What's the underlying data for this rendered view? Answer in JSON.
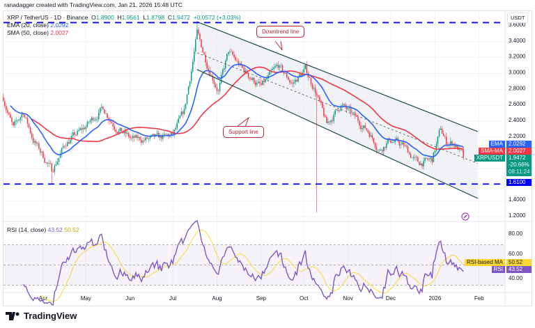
{
  "credit": "ranadagger created with TradingView.com, Jan 21, 2026 15:48 UTC",
  "legend": {
    "symbol": "XRP / TetherUS · 1D · Binance",
    "o_label": "O",
    "o": "1.8900",
    "h_label": "H",
    "h": "1.9561",
    "l_label": "L",
    "l": "1.8798",
    "c_label": "C",
    "c": "1.9472",
    "change": "+0.0572 (+3.03%)",
    "ema_label": "EMA (20, close)",
    "ema": "2.0292",
    "sma_label": "SMA (50, close)",
    "sma": "2.0027",
    "rsi_label": "RSI (14, close)",
    "rsi": "43.52",
    "rsi_ma": "50.52"
  },
  "axis": {
    "currency": "USDT",
    "price_ticks": [
      "3.6000",
      "3.4000",
      "3.2000",
      "3.0000",
      "2.8000",
      "2.6000",
      "2.4000",
      "2.2000",
      "1.4000",
      "1.2000"
    ],
    "rsi_ticks": [
      "80.00",
      "60.00",
      "40.00"
    ],
    "time_ticks": [
      "Apr",
      "May",
      "Jun",
      "Jul",
      "Aug",
      "Sep",
      "Oct",
      "Nov",
      "Dec",
      "2026",
      "Feb"
    ]
  },
  "tags": {
    "ema_name": "EMA",
    "ema_value": "2.0292",
    "sma_name": "SMA-MA",
    "sma_value": "2.0027",
    "sym_name": "XRPUSDT",
    "sym_value": "1.9472",
    "sym_change": "-20.66%",
    "countdown": "08:11:24",
    "hline_value": "1.6100",
    "rsi_ma_name": "RSI-based MA",
    "rsi_ma_value": "50.52",
    "rsi_name": "RSI",
    "rsi_value": "43.52"
  },
  "annotations": {
    "downtrend": "Downtrend line",
    "support": "Support line"
  },
  "logo": "TradingView",
  "colors": {
    "up": "#089981",
    "down": "#f23645",
    "ema": "#2962ff",
    "sma": "#f23645",
    "rsi": "#7e57c2",
    "rsi_ma": "#fdd835",
    "hline": "#0000ff",
    "channel": "#1e4d4d"
  },
  "chart_data": {
    "type": "candlestick",
    "symbol": "XRPUSDT",
    "interval": "1D",
    "ylim": [
      1.2,
      3.7
    ],
    "price_path": [
      [
        "2025-03-04",
        2.7
      ],
      [
        "2025-03-11",
        2.3
      ],
      [
        "2025-03-18",
        2.52
      ],
      [
        "2025-03-25",
        2.17
      ],
      [
        "2025-04-07",
        1.78
      ],
      [
        "2025-04-17",
        2.13
      ],
      [
        "2025-04-29",
        2.3
      ],
      [
        "2025-05-13",
        2.57
      ],
      [
        "2025-05-21",
        2.35
      ],
      [
        "2025-06-02",
        2.17
      ],
      [
        "2025-06-17",
        2.17
      ],
      [
        "2025-07-01",
        2.22
      ],
      [
        "2025-07-09",
        2.52
      ],
      [
        "2025-07-14",
        3.05
      ],
      [
        "2025-07-18",
        3.5
      ],
      [
        "2025-07-25",
        3.13
      ],
      [
        "2025-08-02",
        2.79
      ],
      [
        "2025-08-09",
        3.27
      ],
      [
        "2025-08-19",
        3.05
      ],
      [
        "2025-09-01",
        2.83
      ],
      [
        "2025-09-13",
        3.09
      ],
      [
        "2025-09-23",
        2.87
      ],
      [
        "2025-10-02",
        3.05
      ],
      [
        "2025-10-09",
        2.79
      ],
      [
        "2025-10-17",
        2.35
      ],
      [
        "2025-10-27",
        2.61
      ],
      [
        "2025-11-06",
        2.44
      ],
      [
        "2025-11-16",
        2.26
      ],
      [
        "2025-11-23",
        2.04
      ],
      [
        "2025-11-30",
        2.17
      ],
      [
        "2025-12-10",
        2.09
      ],
      [
        "2025-12-20",
        1.87
      ],
      [
        "2025-12-30",
        1.91
      ],
      [
        "2026-01-05",
        2.3
      ],
      [
        "2026-01-09",
        2.13
      ],
      [
        "2026-01-14",
        2.13
      ],
      [
        "2026-01-18",
        2.04
      ],
      [
        "2026-01-21",
        1.9472
      ]
    ],
    "wicks": [
      [
        "2025-04-07",
        "low",
        1.61
      ],
      [
        "2025-07-18",
        "high",
        3.66
      ],
      [
        "2025-10-10",
        "low",
        1.25
      ]
    ],
    "channel": {
      "upper": [
        [
          "2025-07-18",
          3.65
        ],
        [
          "2026-01-31",
          2.27
        ]
      ],
      "middle": [
        [
          "2025-07-18",
          3.26
        ],
        [
          "2026-01-31",
          1.87
        ]
      ],
      "lower": [
        [
          "2025-07-18",
          3.05
        ],
        [
          "2026-01-31",
          1.43
        ]
      ]
    },
    "horizontal_lines": [
      3.64,
      1.61
    ],
    "rsi_bands": [
      70,
      50,
      30
    ],
    "last": {
      "ema20": 2.0292,
      "sma50": 2.0027,
      "rsi": 43.52,
      "rsi_ma": 50.52
    }
  }
}
